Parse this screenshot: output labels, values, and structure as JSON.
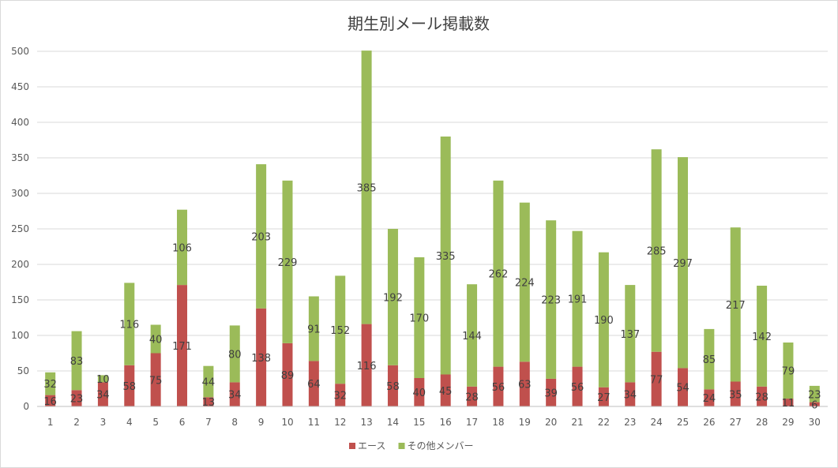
{
  "chart_data": {
    "type": "bar",
    "stacked": true,
    "title": "期生別メール掲載数",
    "xlabel": "",
    "ylabel": "",
    "ylim": [
      0,
      500
    ],
    "yticks": [
      0,
      50,
      100,
      150,
      200,
      250,
      300,
      350,
      400,
      450,
      500
    ],
    "grid": true,
    "legend_position": "bottom",
    "categories": [
      "1",
      "2",
      "3",
      "4",
      "5",
      "6",
      "7",
      "8",
      "9",
      "10",
      "11",
      "12",
      "13",
      "14",
      "15",
      "16",
      "17",
      "18",
      "19",
      "20",
      "21",
      "22",
      "23",
      "24",
      "25",
      "26",
      "27",
      "28",
      "29",
      "30"
    ],
    "series": [
      {
        "name": "エース",
        "color": "#c0504d",
        "values": [
          16,
          23,
          34,
          58,
          75,
          171,
          13,
          34,
          138,
          89,
          64,
          32,
          116,
          58,
          40,
          45,
          28,
          56,
          63,
          39,
          56,
          27,
          34,
          77,
          54,
          24,
          35,
          28,
          11,
          6
        ]
      },
      {
        "name": "その他メンバー",
        "color": "#9bbb59",
        "values": [
          32,
          83,
          10,
          116,
          40,
          106,
          44,
          80,
          203,
          229,
          91,
          152,
          385,
          192,
          170,
          335,
          144,
          262,
          224,
          223,
          191,
          190,
          137,
          285,
          297,
          85,
          217,
          142,
          79,
          23
        ]
      }
    ]
  }
}
